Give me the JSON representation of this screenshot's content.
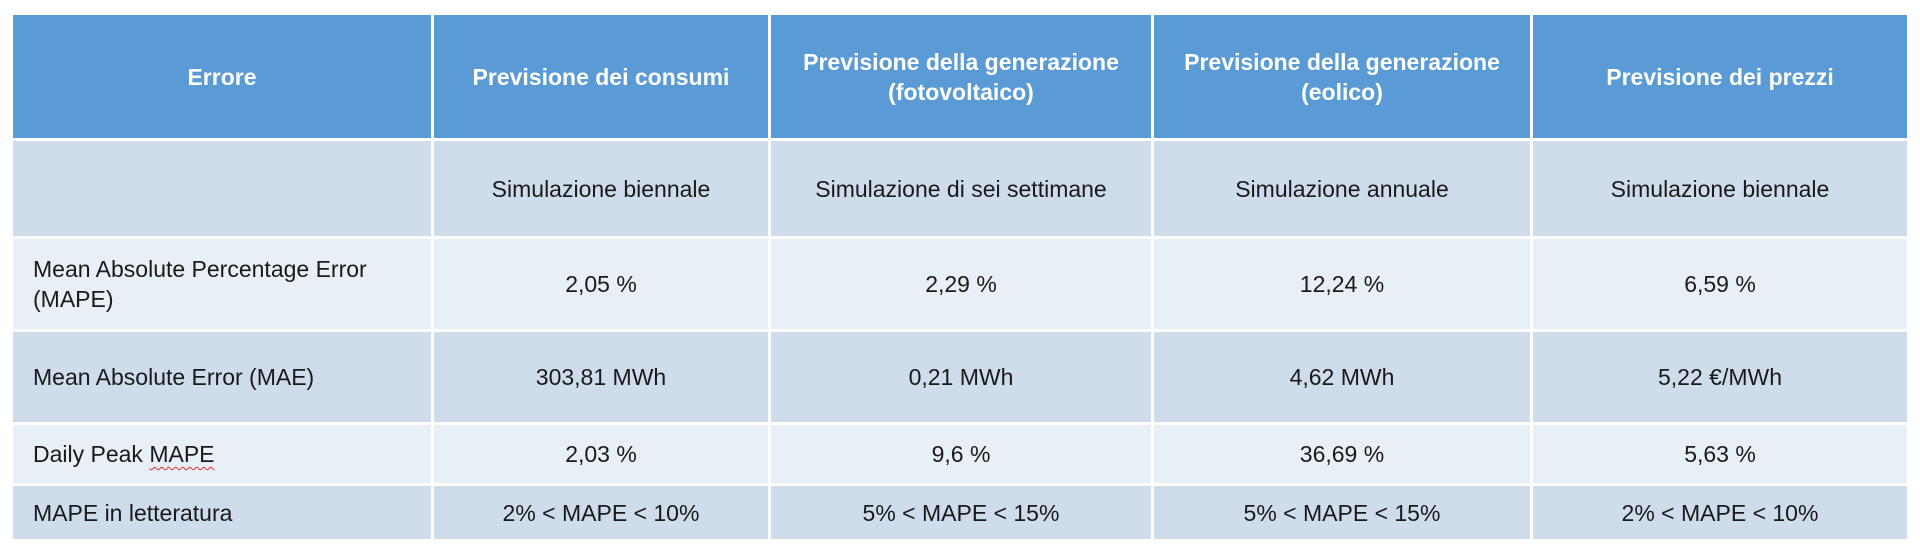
{
  "table": {
    "headers": [
      "Errore",
      "Previsione dei consumi",
      "Previsione della generazione (fotovoltaico)",
      "Previsione della generazione (eolico)",
      "Previsione dei prezzi"
    ],
    "rows": [
      {
        "label": "",
        "cells": [
          "Simulazione biennale",
          "Simulazione di sei settimane",
          "Simulazione annuale",
          "Simulazione biennale"
        ]
      },
      {
        "label": "Mean Absolute Percentage Error (MAPE)",
        "cells": [
          "2,05 %",
          "2,29 %",
          "12,24 %",
          "6,59 %"
        ]
      },
      {
        "label": "Mean Absolute Error (MAE)",
        "cells": [
          "303,81 MWh",
          "0,21 MWh",
          "4,62 MWh",
          "5,22 €/MWh"
        ]
      },
      {
        "label_prefix": "Daily Peak ",
        "label_marked": "MAPE",
        "cells": [
          "2,03 %",
          "9,6 %",
          "36,69 %",
          "5,63 %"
        ]
      },
      {
        "label": "MAPE in letteratura",
        "cells": [
          "2% < MAPE < 10%",
          "5% < MAPE < 15%",
          "5% < MAPE < 15%",
          "2% < MAPE < 10%"
        ]
      }
    ]
  },
  "colors": {
    "header_bg": "#5b9bd5",
    "row_dark": "#cfdcec",
    "row_light": "#e9eff7",
    "spellcheck_underline": "#e03030"
  }
}
